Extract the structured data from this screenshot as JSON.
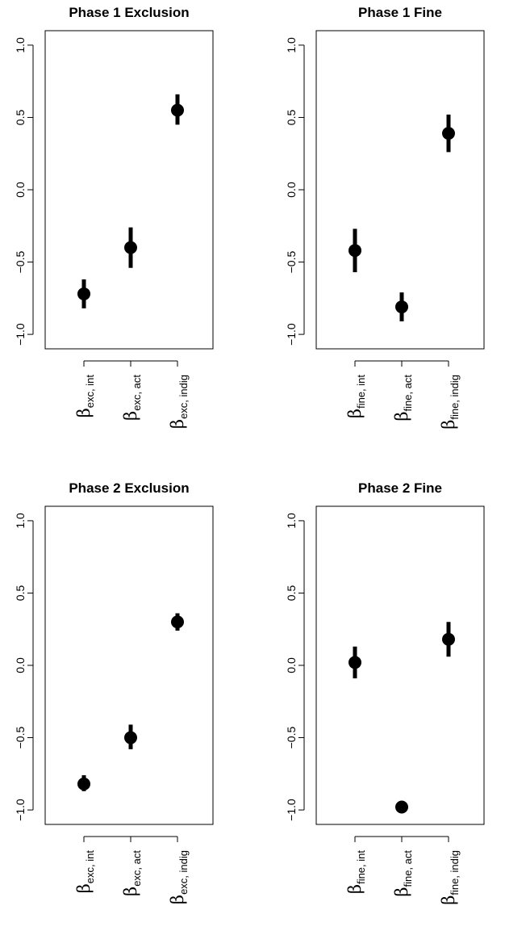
{
  "chart_data": [
    {
      "type": "scatter",
      "title": "Phase 1 Exclusion",
      "ylim": [
        -1.1,
        1.1
      ],
      "yticks": [
        "-1.0",
        "-0.5",
        "0.0",
        "0.5",
        "1.0"
      ],
      "categories": [
        {
          "symbol": "β",
          "subscript": "exc, int"
        },
        {
          "symbol": "β",
          "subscript": "exc, act"
        },
        {
          "symbol": "β",
          "subscript": "exc, indig"
        }
      ],
      "points": [
        {
          "y": -0.72,
          "lower": -0.82,
          "upper": -0.62
        },
        {
          "y": -0.4,
          "lower": -0.54,
          "upper": -0.26
        },
        {
          "y": 0.55,
          "lower": 0.45,
          "upper": 0.66
        }
      ]
    },
    {
      "type": "scatter",
      "title": "Phase 1 Fine",
      "ylim": [
        -1.1,
        1.1
      ],
      "yticks": [
        "-1.0",
        "-0.5",
        "0.0",
        "0.5",
        "1.0"
      ],
      "categories": [
        {
          "symbol": "β",
          "subscript": "fine, int"
        },
        {
          "symbol": "β",
          "subscript": "fine, act"
        },
        {
          "symbol": "β",
          "subscript": "fine, indig"
        }
      ],
      "points": [
        {
          "y": -0.42,
          "lower": -0.57,
          "upper": -0.27
        },
        {
          "y": -0.81,
          "lower": -0.91,
          "upper": -0.71
        },
        {
          "y": 0.39,
          "lower": 0.26,
          "upper": 0.52
        }
      ]
    },
    {
      "type": "scatter",
      "title": "Phase 2 Exclusion",
      "ylim": [
        -1.1,
        1.1
      ],
      "yticks": [
        "-1.0",
        "-0.5",
        "0.0",
        "0.5",
        "1.0"
      ],
      "categories": [
        {
          "symbol": "β",
          "subscript": "exc, int"
        },
        {
          "symbol": "β",
          "subscript": "exc, act"
        },
        {
          "symbol": "β",
          "subscript": "exc, indig"
        }
      ],
      "points": [
        {
          "y": -0.82,
          "lower": -0.87,
          "upper": -0.76
        },
        {
          "y": -0.5,
          "lower": -0.58,
          "upper": -0.41
        },
        {
          "y": 0.3,
          "lower": 0.24,
          "upper": 0.36
        }
      ]
    },
    {
      "type": "scatter",
      "title": "Phase 2 Fine",
      "ylim": [
        -1.1,
        1.1
      ],
      "yticks": [
        "-1.0",
        "-0.5",
        "0.0",
        "0.5",
        "1.0"
      ],
      "categories": [
        {
          "symbol": "β",
          "subscript": "fine, int"
        },
        {
          "symbol": "β",
          "subscript": "fine, act"
        },
        {
          "symbol": "β",
          "subscript": "fine, indig"
        }
      ],
      "points": [
        {
          "y": 0.02,
          "lower": -0.09,
          "upper": 0.13
        },
        {
          "y": -0.98,
          "lower": -0.99,
          "upper": -0.97
        },
        {
          "y": 0.18,
          "lower": 0.06,
          "upper": 0.3
        }
      ]
    }
  ]
}
